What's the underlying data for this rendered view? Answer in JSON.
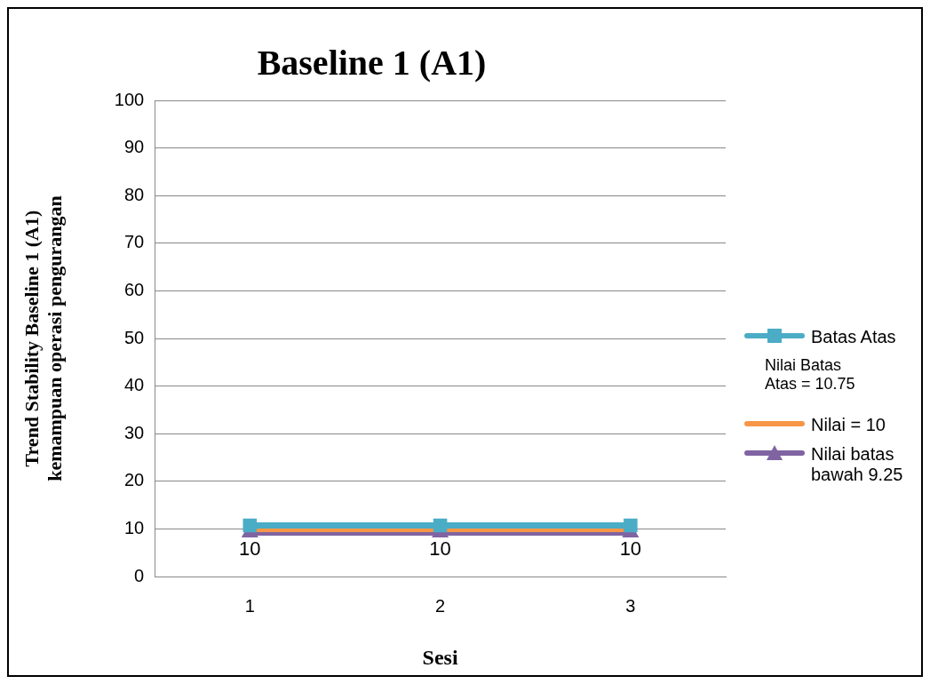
{
  "chart_data": {
    "type": "line",
    "title": "Baseline 1 (A1)",
    "xlabel": "Sesi",
    "ylabel": "Trend Stability Baseline 1 (A1) kemampuan operasi pengurangan",
    "categories": [
      "1",
      "2",
      "3"
    ],
    "series": [
      {
        "name": "Batas Atas",
        "color": "#4bacc6",
        "values": [
          10.75,
          10.75,
          10.75
        ],
        "marker": "square"
      },
      {
        "name": "Nilai = 10",
        "color": "#f79646",
        "values": [
          10,
          10,
          10
        ],
        "marker": "none",
        "value_labels": [
          "10",
          "10",
          "10"
        ]
      },
      {
        "name": "Nilai batas bawah 9.25",
        "color": "#8064a2",
        "values": [
          9.25,
          9.25,
          9.25
        ],
        "marker": "triangle"
      }
    ],
    "annotations": [
      "Nilai Batas Atas = 10.75"
    ],
    "ylim": [
      0,
      100
    ],
    "yticks": [
      0,
      10,
      20,
      30,
      40,
      50,
      60,
      70,
      80,
      90,
      100
    ],
    "grid": "y",
    "legend": "right"
  }
}
